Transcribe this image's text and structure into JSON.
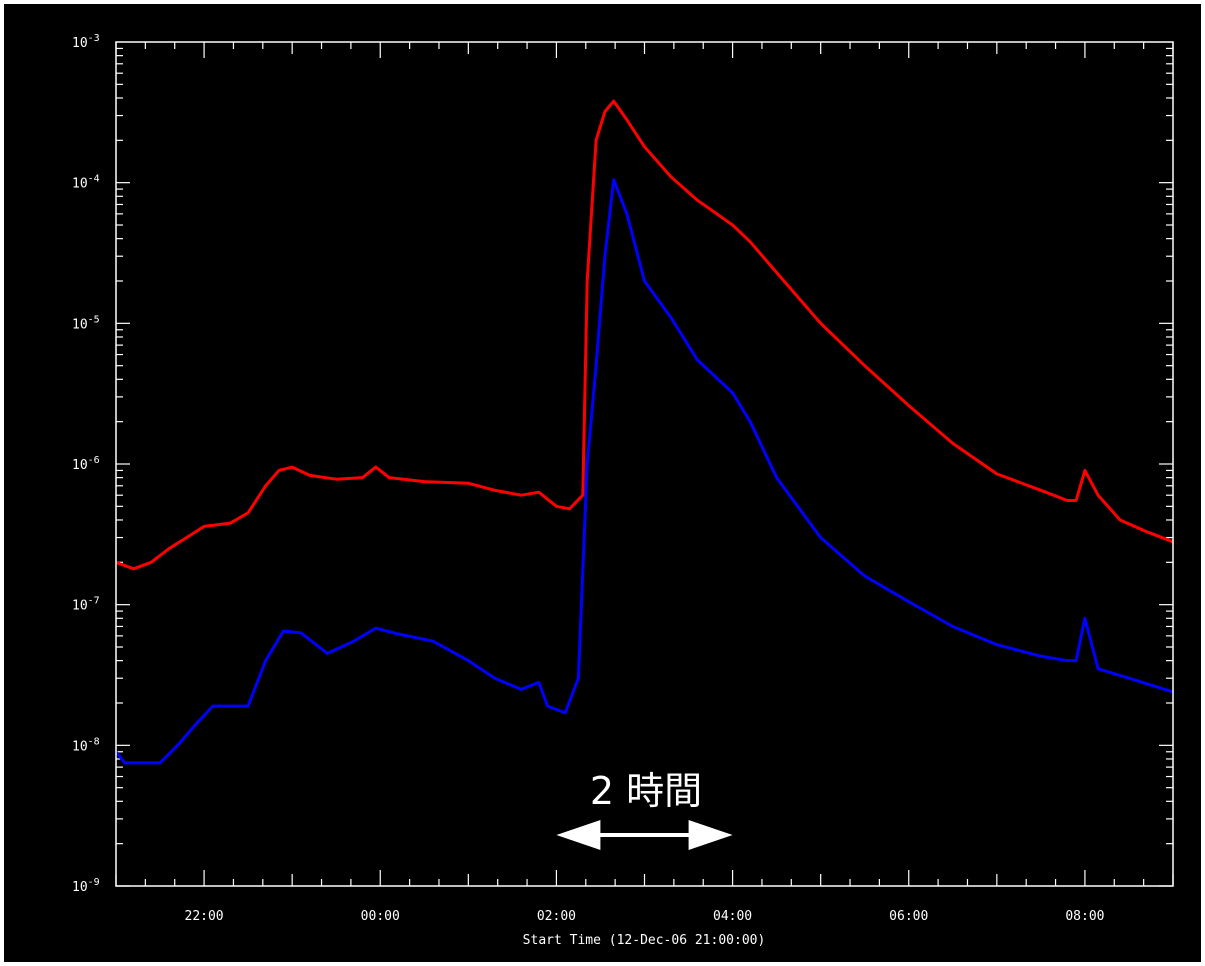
{
  "chart_data": {
    "type": "line",
    "xlabel": "Start Time (12-Dec-06 21:00:00)",
    "ylabel": "",
    "y_scale": "log",
    "x_ticks": [
      {
        "hour": 22,
        "label": "22:00"
      },
      {
        "hour": 24,
        "label": "00:00"
      },
      {
        "hour": 26,
        "label": "02:00"
      },
      {
        "hour": 28,
        "label": "04:00"
      },
      {
        "hour": 30,
        "label": "06:00"
      },
      {
        "hour": 32,
        "label": "08:00"
      }
    ],
    "y_ticks": [
      {
        "exp": -9,
        "base": "10",
        "label_exp": "-9"
      },
      {
        "exp": -8,
        "base": "10",
        "label_exp": "-8"
      },
      {
        "exp": -7,
        "base": "10",
        "label_exp": "-7"
      },
      {
        "exp": -6,
        "base": "10",
        "label_exp": "-6"
      },
      {
        "exp": -5,
        "base": "10",
        "label_exp": "-5"
      },
      {
        "exp": -4,
        "base": "10",
        "label_exp": "-4"
      },
      {
        "exp": -3,
        "base": "10",
        "label_exp": "-3"
      }
    ],
    "xlim_hours": [
      21,
      33
    ],
    "ylim": [
      1e-09,
      0.001
    ],
    "series": [
      {
        "color": "#ff0000",
        "points": [
          [
            21.0,
            2e-07
          ],
          [
            21.2,
            1.8e-07
          ],
          [
            21.4,
            2e-07
          ],
          [
            21.6,
            2.5e-07
          ],
          [
            21.8,
            3e-07
          ],
          [
            22.0,
            3.6e-07
          ],
          [
            22.3,
            3.8e-07
          ],
          [
            22.5,
            4.5e-07
          ],
          [
            22.7,
            7e-07
          ],
          [
            22.85,
            9e-07
          ],
          [
            23.0,
            9.5e-07
          ],
          [
            23.2,
            8.3e-07
          ],
          [
            23.5,
            7.8e-07
          ],
          [
            23.8,
            8e-07
          ],
          [
            23.95,
            9.5e-07
          ],
          [
            24.1,
            8e-07
          ],
          [
            24.5,
            7.5e-07
          ],
          [
            25.0,
            7.3e-07
          ],
          [
            25.3,
            6.5e-07
          ],
          [
            25.6,
            6e-07
          ],
          [
            25.8,
            6.3e-07
          ],
          [
            26.0,
            5e-07
          ],
          [
            26.15,
            4.8e-07
          ],
          [
            26.3,
            6e-07
          ],
          [
            26.35,
            2e-05
          ],
          [
            26.45,
            0.0002
          ],
          [
            26.55,
            0.00032
          ],
          [
            26.65,
            0.00038
          ],
          [
            26.8,
            0.00028
          ],
          [
            27.0,
            0.00018
          ],
          [
            27.3,
            0.00011
          ],
          [
            27.6,
            7.5e-05
          ],
          [
            28.0,
            5e-05
          ],
          [
            28.2,
            3.8e-05
          ],
          [
            28.5,
            2.3e-05
          ],
          [
            29.0,
            1e-05
          ],
          [
            29.5,
            5e-06
          ],
          [
            30.0,
            2.6e-06
          ],
          [
            30.5,
            1.4e-06
          ],
          [
            31.0,
            8.5e-07
          ],
          [
            31.5,
            6.5e-07
          ],
          [
            31.8,
            5.5e-07
          ],
          [
            31.9,
            5.5e-07
          ],
          [
            32.0,
            9e-07
          ],
          [
            32.15,
            6e-07
          ],
          [
            32.4,
            4e-07
          ],
          [
            32.7,
            3.3e-07
          ],
          [
            33.0,
            2.8e-07
          ]
        ]
      },
      {
        "color": "#0000ff",
        "points": [
          [
            21.0,
            9e-09
          ],
          [
            21.1,
            7.5e-09
          ],
          [
            21.5,
            7.5e-09
          ],
          [
            21.7,
            1e-08
          ],
          [
            21.9,
            1.4e-08
          ],
          [
            22.1,
            1.9e-08
          ],
          [
            22.5,
            1.9e-08
          ],
          [
            22.7,
            4e-08
          ],
          [
            22.9,
            6.5e-08
          ],
          [
            23.1,
            6.3e-08
          ],
          [
            23.4,
            4.5e-08
          ],
          [
            23.7,
            5.5e-08
          ],
          [
            23.95,
            6.8e-08
          ],
          [
            24.2,
            6.2e-08
          ],
          [
            24.6,
            5.5e-08
          ],
          [
            25.0,
            4e-08
          ],
          [
            25.3,
            3e-08
          ],
          [
            25.6,
            2.5e-08
          ],
          [
            25.8,
            2.8e-08
          ],
          [
            25.9,
            1.9e-08
          ],
          [
            26.1,
            1.7e-08
          ],
          [
            26.25,
            3e-08
          ],
          [
            26.35,
            1e-06
          ],
          [
            26.45,
            5e-06
          ],
          [
            26.55,
            3e-05
          ],
          [
            26.65,
            0.000105
          ],
          [
            26.8,
            6e-05
          ],
          [
            27.0,
            2e-05
          ],
          [
            27.3,
            1.1e-05
          ],
          [
            27.6,
            5.5e-06
          ],
          [
            28.0,
            3.2e-06
          ],
          [
            28.2,
            2e-06
          ],
          [
            28.5,
            8e-07
          ],
          [
            29.0,
            3e-07
          ],
          [
            29.5,
            1.6e-07
          ],
          [
            30.0,
            1.05e-07
          ],
          [
            30.5,
            7e-08
          ],
          [
            31.0,
            5.2e-08
          ],
          [
            31.5,
            4.3e-08
          ],
          [
            31.8,
            4e-08
          ],
          [
            31.9,
            4e-08
          ],
          [
            32.0,
            8e-08
          ],
          [
            32.15,
            3.5e-08
          ],
          [
            32.5,
            3e-08
          ],
          [
            33.0,
            2.4e-08
          ]
        ]
      }
    ],
    "annotation": {
      "text": "2 時間",
      "arrow_from_hour": 26.0,
      "arrow_to_hour": 28.0
    }
  }
}
